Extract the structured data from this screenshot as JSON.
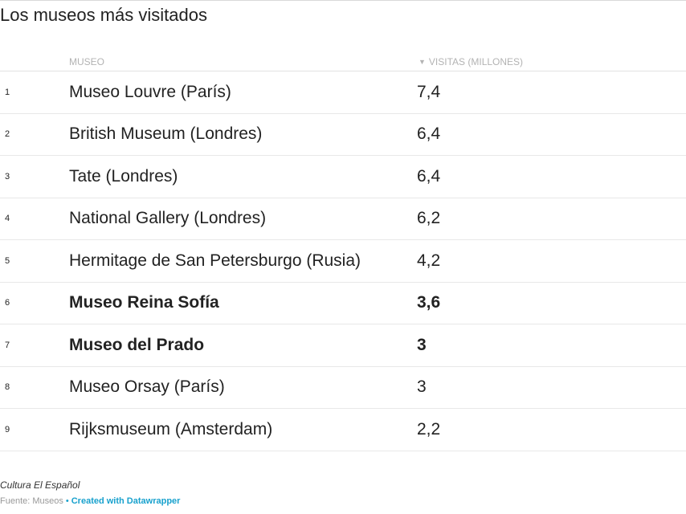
{
  "title": "Los museos más visitados",
  "chart_data": {
    "type": "table",
    "title": "Los museos más visitados",
    "columns": [
      "MUSEO",
      "VISITAS (MILLONES)"
    ],
    "sort_indicator": "▼",
    "sorted_column": "VISITAS (MILLONES)",
    "rows": [
      {
        "rank": "1",
        "name": "Museo Louvre (París)",
        "value": "7,4",
        "bold": false
      },
      {
        "rank": "2",
        "name": "British Museum (Londres)",
        "value": "6,4",
        "bold": false
      },
      {
        "rank": "3",
        "name": "Tate (Londres)",
        "value": "6,4",
        "bold": false
      },
      {
        "rank": "4",
        "name": "National Gallery (Londres)",
        "value": "6,2",
        "bold": false
      },
      {
        "rank": "5",
        "name": "Hermitage de San Petersburgo (Rusia)",
        "value": "4,2",
        "bold": false
      },
      {
        "rank": "6",
        "name": "Museo Reina Sofía",
        "value": "3,6",
        "bold": true
      },
      {
        "rank": "7",
        "name": "Museo del Prado",
        "value": "3",
        "bold": true
      },
      {
        "rank": "8",
        "name": "Museo Orsay (París)",
        "value": "3",
        "bold": false
      },
      {
        "rank": "9",
        "name": "Rijksmuseum (Amsterdam)",
        "value": "2,2",
        "bold": false
      }
    ],
    "values": [
      7.4,
      6.4,
      6.4,
      6.2,
      4.2,
      3.6,
      3,
      3,
      2.2
    ]
  },
  "notes": "Cultura El Español",
  "footer": {
    "source": "Fuente: Museos",
    "separator": "•",
    "credit": "Created with Datawrapper"
  },
  "colors": {
    "text": "#222222",
    "header": "#b3b3b3",
    "accent": "#18a1cd"
  }
}
